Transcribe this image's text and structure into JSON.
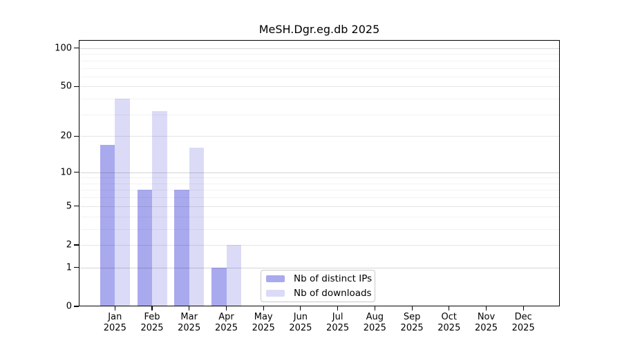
{
  "chart_data": {
    "type": "bar",
    "title": "MeSH.Dgr.eg.db 2025",
    "year_label": "2025",
    "months": [
      "Jan",
      "Feb",
      "Mar",
      "Apr",
      "May",
      "Jun",
      "Jul",
      "Aug",
      "Sep",
      "Oct",
      "Nov",
      "Dec"
    ],
    "series": [
      {
        "name": "Nb of distinct IPs",
        "color": "#a9a9ee",
        "values": [
          17,
          7,
          7,
          1,
          0,
          0,
          0,
          0,
          0,
          0,
          0,
          0
        ]
      },
      {
        "name": "Nb of downloads",
        "color": "#dbdbf8",
        "values": [
          40,
          32,
          16,
          2,
          0,
          0,
          0,
          0,
          0,
          0,
          0,
          0
        ]
      }
    ],
    "y_scale": "log1p",
    "ylim": [
      0,
      116
    ],
    "y_major_ticks": [
      100,
      50,
      20,
      10,
      5,
      2,
      1,
      0
    ],
    "y_minor_gridlines": [
      3,
      4,
      6,
      7,
      8,
      9,
      30,
      40,
      60,
      70,
      80,
      90
    ],
    "grid": true,
    "legend_position": "inside-bottom-center"
  }
}
